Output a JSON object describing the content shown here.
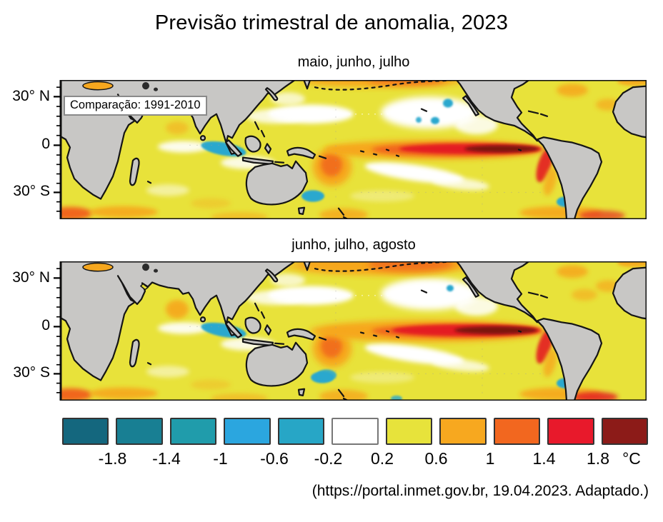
{
  "title": "Previsão trimestral de anomalia, 2023",
  "panels": [
    {
      "label": "maio, junho, julho",
      "note": "Comparação: 1991-2010",
      "lat_ticks": [
        "30° N",
        "0",
        "30° S"
      ]
    },
    {
      "label": "junho, julho, agosto",
      "note": null,
      "lat_ticks": [
        "30° N",
        "0",
        "30° S"
      ]
    }
  ],
  "legend": {
    "unit": "°C",
    "boundary_labels": [
      "-1.8",
      "-1.4",
      "-1",
      "-0.6",
      "-0.2",
      "0.2",
      "0.6",
      "1",
      "1.4",
      "1.8"
    ],
    "swatches": [
      {
        "name": "below -1.8",
        "color": "#14677E"
      },
      {
        "name": "-1.8 to -1.4",
        "color": "#187F93"
      },
      {
        "name": "-1.4 to -1",
        "color": "#209CAB"
      },
      {
        "name": "-1 to -0.6",
        "color": "#2BA6DF"
      },
      {
        "name": "-0.6 to -0.2",
        "color": "#27A6C6"
      },
      {
        "name": "-0.2 to 0.2",
        "color": "#FFFFFF"
      },
      {
        "name": "0.2 to 0.6",
        "color": "#E7E33B"
      },
      {
        "name": "0.6 to 1",
        "color": "#F7A81F"
      },
      {
        "name": "1 to 1.4",
        "color": "#F2671F"
      },
      {
        "name": "1.4 to 1.8",
        "color": "#E8192B"
      },
      {
        "name": "above 1.8",
        "color": "#8C1B18"
      }
    ]
  },
  "source_note": "(https://portal.inmet.gov.br, 19.04.2023. Adaptado.)",
  "map_colors": {
    "ocean": "#E8E23A",
    "land": "#C8C7C5",
    "coast": "#151515",
    "warm1": "#F6A71E",
    "warm2": "#F1661F",
    "warm3": "#E41A20",
    "warm4": "#7D150E",
    "cool": "#2AA8CE",
    "neutral": "#FFFFFF"
  },
  "chart_data": {
    "type": "heatmap",
    "title": "Previsão trimestral de anomalia, 2023",
    "panels": [
      "maio, junho, julho",
      "junho, julho, agosto"
    ],
    "baseline_period": "1991-2010",
    "colorbar_boundaries_degC": [
      -1.8,
      -1.4,
      -1,
      -0.6,
      -0.2,
      0.2,
      0.6,
      1,
      1.4,
      1.8
    ],
    "colorbar_colors": [
      "#14677E",
      "#187F93",
      "#209CAB",
      "#2BA6DF",
      "#27A6C6",
      "#FFFFFF",
      "#E7E33B",
      "#F7A81F",
      "#F2671F",
      "#E8192B",
      "#8C1B18"
    ],
    "lat_ticks": [
      "30° N",
      "0",
      "30° S"
    ]
  }
}
